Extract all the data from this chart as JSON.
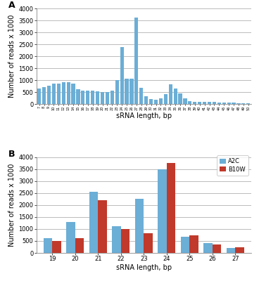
{
  "panel_A": {
    "x": [
      7,
      8,
      9,
      10,
      11,
      12,
      13,
      14,
      15,
      16,
      17,
      18,
      19,
      20,
      21,
      22,
      23,
      24,
      25,
      26,
      27,
      28,
      29,
      30,
      31,
      32,
      33,
      34,
      35,
      36,
      37,
      38,
      39,
      40,
      41,
      42,
      43,
      44,
      45,
      46,
      47,
      48,
      49,
      50
    ],
    "y": [
      650,
      730,
      780,
      870,
      860,
      930,
      920,
      850,
      620,
      560,
      560,
      560,
      530,
      510,
      510,
      560,
      1000,
      2380,
      1060,
      1070,
      3620,
      680,
      350,
      210,
      200,
      240,
      420,
      820,
      650,
      450,
      240,
      140,
      100,
      95,
      90,
      100,
      90,
      85,
      80,
      70,
      60,
      50,
      40,
      30
    ],
    "bar_color": "#6baed6",
    "xlabel": "sRNA length, bp",
    "ylabel": "Number of reads x 1000",
    "ylim": [
      0,
      4000
    ],
    "yticks": [
      0,
      500,
      1000,
      1500,
      2000,
      2500,
      3000,
      3500,
      4000
    ],
    "label": "A"
  },
  "panel_B": {
    "x": [
      19,
      20,
      21,
      22,
      23,
      24,
      25,
      26,
      27
    ],
    "y_A2C": [
      620,
      1300,
      2550,
      1100,
      2270,
      3500,
      670,
      400,
      210
    ],
    "y_B10W": [
      490,
      620,
      2200,
      1010,
      810,
      3740,
      720,
      350,
      230
    ],
    "bar_color_A2C": "#6baed6",
    "bar_color_B10W": "#c0392b",
    "xlabel": "sRNA length, bp",
    "ylabel": "Number of reads x 1000",
    "ylim": [
      0,
      4000
    ],
    "yticks": [
      0,
      500,
      1000,
      1500,
      2000,
      2500,
      3000,
      3500,
      4000
    ],
    "label": "B",
    "legend_A2C": "A2C",
    "legend_B10W": "B10W"
  },
  "bg_color": "#ffffff",
  "grid_color": "#bbbbbb",
  "tick_fontsize": 6,
  "label_fontsize": 7,
  "panel_label_fontsize": 9
}
